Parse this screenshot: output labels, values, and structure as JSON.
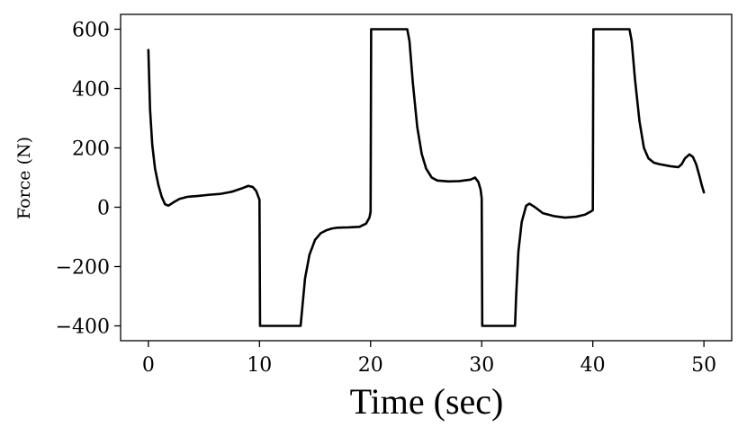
{
  "chart_data": {
    "type": "line",
    "title": "",
    "xlabel": "Time (sec)",
    "ylabel": "Force (N)",
    "xlim": [
      -2.5,
      52.5
    ],
    "ylim": [
      -450,
      650
    ],
    "xticks": [
      0,
      10,
      20,
      30,
      40,
      50
    ],
    "yticks": [
      -400,
      -200,
      0,
      200,
      400,
      600
    ],
    "xtick_labels": [
      "0",
      "10",
      "20",
      "30",
      "40",
      "50"
    ],
    "ytick_labels": [
      "−400",
      "−200",
      "0",
      "200",
      "400",
      "600"
    ],
    "grid": false,
    "legend": "none",
    "series": [
      {
        "color": "#000000",
        "x": [
          0,
          0.15,
          0.35,
          0.6,
          0.9,
          1.2,
          1.5,
          1.8,
          2.2,
          2.8,
          3.5,
          4.5,
          5.5,
          6.5,
          7.5,
          8.3,
          9.0,
          9.4,
          9.7,
          9.9,
          10.0,
          10.05,
          11.0,
          12.0,
          13.0,
          13.7,
          13.85,
          14.1,
          14.5,
          15.0,
          15.5,
          16.0,
          16.5,
          17.0,
          18.0,
          19.0,
          19.6,
          19.9,
          20.0,
          20.05,
          21.0,
          22.0,
          23.0,
          23.3,
          23.5,
          23.8,
          24.2,
          24.6,
          25.0,
          25.5,
          26.0,
          27.0,
          28.0,
          29.0,
          29.4,
          29.7,
          29.9,
          30.0,
          30.05,
          31.0,
          32.0,
          33.0,
          33.1,
          33.3,
          33.6,
          34.0,
          34.3,
          34.8,
          35.5,
          36.5,
          37.5,
          38.5,
          39.3,
          39.8,
          40.0,
          40.05,
          41.0,
          42.0,
          43.0,
          43.3,
          43.5,
          43.8,
          44.2,
          44.6,
          45.0,
          45.5,
          46.0,
          47.0,
          47.7,
          48.0,
          48.3,
          48.7,
          49.0,
          49.3,
          49.6,
          49.8,
          50.0
        ],
        "y": [
          530,
          330,
          210,
          130,
          75,
          35,
          10,
          5,
          15,
          28,
          35,
          38,
          42,
          45,
          52,
          62,
          72,
          68,
          55,
          35,
          25,
          -400,
          -400,
          -400,
          -400,
          -400,
          -340,
          -240,
          -160,
          -110,
          -88,
          -78,
          -72,
          -69,
          -68,
          -66,
          -55,
          -35,
          -15,
          600,
          600,
          600,
          600,
          600,
          560,
          420,
          270,
          180,
          130,
          100,
          90,
          87,
          88,
          93,
          100,
          85,
          60,
          30,
          -400,
          -400,
          -400,
          -400,
          -300,
          -150,
          -50,
          5,
          12,
          0,
          -20,
          -30,
          -35,
          -32,
          -25,
          -15,
          -10,
          600,
          600,
          600,
          600,
          600,
          560,
          430,
          290,
          200,
          165,
          150,
          145,
          138,
          135,
          145,
          165,
          178,
          170,
          145,
          105,
          75,
          50
        ]
      }
    ]
  }
}
